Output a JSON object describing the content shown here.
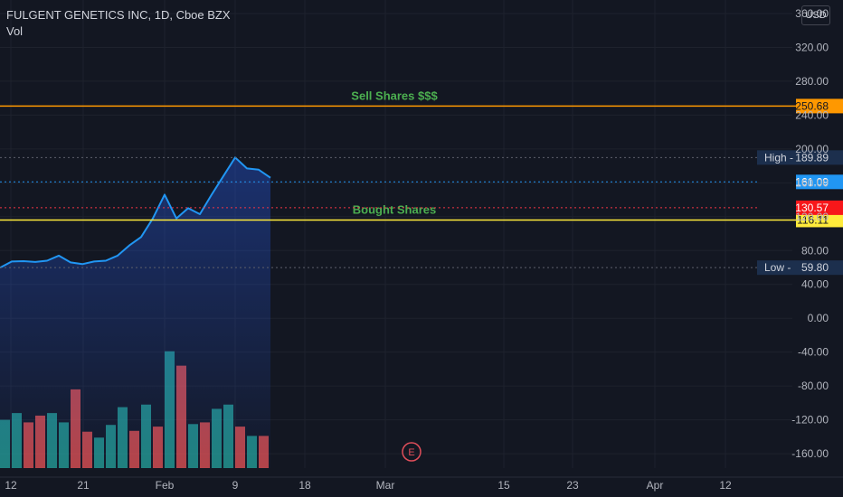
{
  "header": {
    "title": "FULGENT GENETICS INC, 1D, Cboe BZX",
    "vol_label": "Vol"
  },
  "currency": "USD",
  "colors": {
    "background": "#131722",
    "grid": "#1e222d",
    "price_line": "#2196f3",
    "volume_up": "#26a69a",
    "volume_down": "#ef5350",
    "sell_line": "#ff9800",
    "bought_line": "#ffeb3b",
    "annotation_text": "#4caf50",
    "axis_text": "#b2b5be"
  },
  "chart_data": {
    "type": "line",
    "title": "FULGENT GENETICS INC, 1D, Cboe BZX",
    "y_axis": {
      "ticks": [
        360,
        320,
        280,
        240,
        200,
        160,
        120,
        80,
        40,
        0,
        -40,
        -80,
        -120,
        -160
      ],
      "ylim": [
        -177,
        376
      ],
      "unit": "USD"
    },
    "x_axis": {
      "tick_labels": [
        "12",
        "21",
        "Feb",
        "9",
        "18",
        "Mar",
        "15",
        "23",
        "Apr",
        "12"
      ]
    },
    "price_series": {
      "name": "",
      "values": [
        59.8,
        67,
        67.5,
        66.5,
        68,
        74,
        66,
        64,
        67,
        68,
        74,
        86,
        96,
        118,
        146,
        118,
        130,
        123,
        146,
        168,
        189.89,
        177,
        175.5,
        166
      ]
    },
    "volume_series": {
      "values": [
        -120,
        -112,
        -123,
        -115,
        -112,
        -123,
        -84,
        -134,
        -141,
        -126,
        -105,
        -133,
        -102,
        -128,
        -39,
        -56,
        -125,
        -123,
        -107,
        -102,
        -128,
        -139,
        -139
      ],
      "directions": [
        "up",
        "up",
        "down",
        "down",
        "up",
        "up",
        "down",
        "down",
        "up",
        "up",
        "up",
        "down",
        "up",
        "down",
        "up",
        "down",
        "up",
        "down",
        "up",
        "up",
        "down",
        "up",
        "down"
      ],
      "baseline": -177
    },
    "horizontal_lines": [
      {
        "name": "sell",
        "value": 250.68,
        "label": "Sell Shares $$$",
        "price_tag": "250.68",
        "color": "#ff9800"
      },
      {
        "name": "bought",
        "value": 116.11,
        "label": "Bought Shares",
        "price_tag": "116.11",
        "color": "#ffeb3b"
      }
    ],
    "price_tags": [
      {
        "name": "high",
        "prefix": "High",
        "value": 189.89,
        "text": "189.89",
        "bg": "#1c2f4d",
        "fg": "#d1d4dc",
        "dotted": "#5d606b"
      },
      {
        "name": "last",
        "prefix": "",
        "value": 161.09,
        "text": "161.09",
        "bg": "#2196f3",
        "fg": "#ffffff",
        "dotted": "#2196f3"
      },
      {
        "name": "prev-close",
        "prefix": "",
        "value": 130.57,
        "text": "130.57",
        "bg": "#f7171a",
        "fg": "#ffffff",
        "dotted": "#f23645"
      },
      {
        "name": "low",
        "prefix": "Low",
        "value": 59.8,
        "text": "59.80",
        "bg": "#1c2f4d",
        "fg": "#d1d4dc",
        "dotted": "#5d606b"
      }
    ],
    "earnings_marker": "E"
  }
}
